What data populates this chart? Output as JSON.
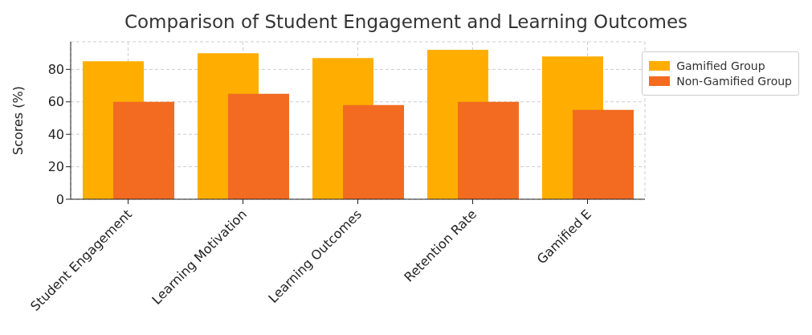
{
  "chart_data": {
    "type": "bar",
    "title": "Comparison of Student Engagement and Learning Outcomes",
    "ylabel": "Scores (%)",
    "categories": [
      "Student Engagement",
      "Learning Motivation",
      "Learning Outcomes",
      "Retention Rate",
      "Gamified E"
    ],
    "series": [
      {
        "name": "Gamified Group",
        "color": "#ffae00",
        "values": [
          85,
          90,
          87,
          92,
          88
        ]
      },
      {
        "name": "Non-Gamified Group",
        "color": "#f26b21",
        "values": [
          60,
          65,
          58,
          60,
          55
        ]
      }
    ],
    "ylim": [
      0,
      97
    ],
    "yticks": [
      0,
      20,
      40,
      60,
      80
    ],
    "grid": true,
    "legend": "top right"
  }
}
